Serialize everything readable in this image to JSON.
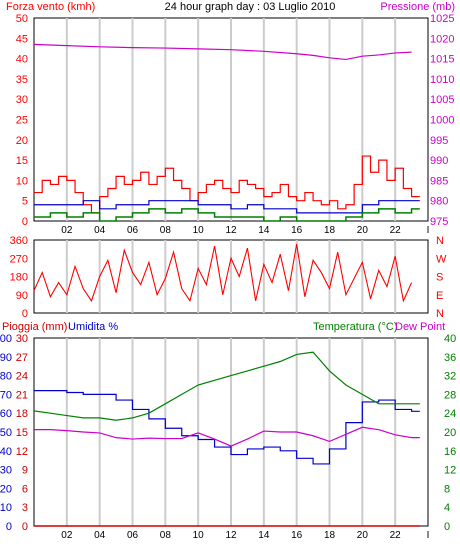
{
  "header": {
    "title": "24 hour graph day : 03 Luglio 2010",
    "wind_label": "Forza vento (kmh)",
    "pressure_label": "Pressione (mb)",
    "rain_label": "Pioggia (mm)",
    "humidity_label": "Umidita %",
    "temperature_label": "Temperatura (°C)",
    "dewpoint_label": "Dew Point"
  },
  "colors": {
    "wind_speed": "#ff0000",
    "wind_gust_low": "#008000",
    "wind_avg": "#0000cc",
    "pressure": "#cc00cc",
    "direction": "#ff0000",
    "humidity": "#0000cc",
    "temperature": "#008000",
    "dewpoint": "#cc00cc",
    "rain": "#cc0000",
    "grid": "#cccccc"
  },
  "chart_data": [
    {
      "type": "line",
      "name": "wind-pressure",
      "x_ticks": [
        "02",
        "04",
        "06",
        "08",
        "10",
        "12",
        "14",
        "16",
        "18",
        "20",
        "22",
        "I"
      ],
      "x_range": [
        0,
        24
      ],
      "y_left": {
        "label": "Forza vento (kmh)",
        "ticks": [
          0,
          5,
          10,
          15,
          20,
          25,
          30,
          35,
          40,
          45,
          50
        ],
        "range": [
          0,
          50
        ]
      },
      "y_right": {
        "label": "Pressione (mb)",
        "ticks": [
          975,
          980,
          985,
          990,
          995,
          1000,
          1005,
          1010,
          1015,
          1020,
          1025
        ],
        "range": [
          975,
          1025
        ]
      },
      "series": [
        {
          "name": "wind-gust",
          "axis": "left",
          "x": [
            0,
            0.5,
            1,
            1.5,
            2,
            2.5,
            3,
            3.5,
            4,
            4.5,
            5,
            5.5,
            6,
            6.5,
            7,
            7.5,
            8,
            8.5,
            9,
            9.5,
            10,
            10.5,
            11,
            11.5,
            12,
            12.5,
            13,
            13.5,
            14,
            14.5,
            15,
            15.5,
            16,
            16.5,
            17,
            17.5,
            18,
            18.5,
            19,
            19.5,
            20,
            20.5,
            21,
            21.5,
            22,
            22.5,
            23
          ],
          "y": [
            7,
            10,
            9,
            11,
            10,
            7,
            4,
            2,
            6,
            8,
            11,
            9,
            10,
            12,
            9,
            11,
            13,
            10,
            8,
            5,
            7,
            9,
            10,
            8,
            7,
            10,
            9,
            8,
            6,
            7,
            9,
            6,
            5,
            7,
            5,
            4,
            5,
            3,
            4,
            9,
            16,
            12,
            15,
            10,
            13,
            8,
            6
          ]
        },
        {
          "name": "wind-avg",
          "axis": "left",
          "x": [
            0,
            1,
            2,
            3,
            4,
            5,
            6,
            7,
            8,
            9,
            10,
            11,
            12,
            13,
            14,
            15,
            16,
            17,
            18,
            19,
            20,
            21,
            22,
            23
          ],
          "y": [
            4,
            4,
            4,
            5,
            3,
            4,
            4,
            5,
            5,
            5,
            4,
            4,
            3,
            4,
            3,
            3,
            2,
            2,
            2,
            2,
            4,
            5,
            5,
            5
          ]
        },
        {
          "name": "wind-min",
          "axis": "left",
          "x": [
            0,
            1,
            2,
            3,
            4,
            5,
            6,
            7,
            8,
            9,
            10,
            11,
            12,
            13,
            14,
            15,
            16,
            17,
            18,
            19,
            20,
            21,
            22,
            23
          ],
          "y": [
            1,
            2,
            1,
            2,
            0,
            1,
            2,
            3,
            2,
            3,
            2,
            1,
            1,
            1,
            0,
            1,
            0,
            0,
            0,
            1,
            2,
            3,
            2,
            3
          ]
        },
        {
          "name": "pressure",
          "axis": "right",
          "x": [
            0,
            2,
            4,
            6,
            8,
            10,
            12,
            14,
            16,
            17,
            18,
            19,
            20,
            21,
            22,
            23
          ],
          "y": [
            1018.5,
            1018.2,
            1017.9,
            1017.7,
            1017.6,
            1017.4,
            1017.2,
            1016.8,
            1016.2,
            1015.8,
            1015.2,
            1014.8,
            1015.6,
            1015.9,
            1016.4,
            1016.6
          ]
        }
      ]
    },
    {
      "type": "line",
      "name": "wind-direction",
      "x_range": [
        0,
        24
      ],
      "y_left": {
        "ticks": [
          0,
          90,
          180,
          270,
          360
        ],
        "range": [
          0,
          360
        ]
      },
      "y_right_labels": [
        "N",
        "W",
        "S",
        "E",
        "N"
      ],
      "series": [
        {
          "name": "direction",
          "x": [
            0,
            0.5,
            1,
            1.5,
            2,
            2.5,
            3,
            3.5,
            4,
            4.5,
            5,
            5.5,
            6,
            6.5,
            7,
            7.5,
            8,
            8.5,
            9,
            9.5,
            10,
            10.5,
            11,
            11.5,
            12,
            12.5,
            13,
            13.5,
            14,
            14.5,
            15,
            15.5,
            16,
            16.5,
            17,
            17.5,
            18,
            18.5,
            19,
            19.5,
            20,
            20.5,
            21,
            21.5,
            22,
            22.5,
            23
          ],
          "y": [
            110,
            200,
            80,
            150,
            90,
            230,
            120,
            60,
            180,
            260,
            100,
            310,
            200,
            140,
            250,
            90,
            170,
            300,
            120,
            60,
            220,
            140,
            330,
            90,
            270,
            180,
            320,
            60,
            240,
            150,
            290,
            110,
            340,
            80,
            260,
            200,
            120,
            300,
            90,
            170,
            250,
            70,
            210,
            130,
            280,
            60,
            150
          ]
        }
      ]
    },
    {
      "type": "line",
      "name": "temperature-humidity",
      "x_ticks": [
        "02",
        "04",
        "06",
        "08",
        "10",
        "12",
        "14",
        "16",
        "18",
        "20",
        "22",
        "I"
      ],
      "x_range": [
        0,
        24
      ],
      "y_left_humidity": {
        "label": "Umidita %",
        "ticks": [
          0,
          10,
          20,
          30,
          40,
          50,
          60,
          70,
          80,
          90,
          100
        ],
        "range": [
          0,
          100
        ]
      },
      "y_left_rain": {
        "label": "Pioggia (mm)",
        "ticks": [
          0,
          3,
          6,
          9,
          12,
          15,
          18,
          21,
          24,
          27,
          30
        ],
        "range": [
          0,
          30
        ]
      },
      "y_right": {
        "label": "Temperatura (°C)",
        "ticks": [
          0,
          4,
          8,
          12,
          16,
          20,
          24,
          28,
          32,
          36,
          40
        ],
        "range": [
          0,
          40
        ]
      },
      "series": [
        {
          "name": "humidity",
          "axis": "humidity",
          "x": [
            0,
            1,
            2,
            3,
            4,
            5,
            6,
            7,
            8,
            9,
            10,
            11,
            12,
            13,
            14,
            15,
            16,
            17,
            18,
            19,
            20,
            21,
            22,
            23
          ],
          "y": [
            72,
            72,
            71,
            70,
            70,
            67,
            62,
            57,
            52,
            48,
            46,
            42,
            38,
            41,
            42,
            40,
            36,
            33,
            41,
            55,
            66,
            67,
            62,
            61
          ]
        },
        {
          "name": "temperature",
          "axis": "right",
          "x": [
            0,
            1,
            2,
            3,
            4,
            5,
            6,
            7,
            8,
            9,
            10,
            11,
            12,
            13,
            14,
            15,
            16,
            17,
            18,
            19,
            20,
            21,
            22,
            23
          ],
          "y": [
            24.5,
            24,
            23.5,
            23,
            23,
            22.5,
            23,
            24,
            26,
            28,
            30,
            31,
            32,
            33,
            34,
            35,
            36.5,
            37,
            33,
            30,
            28,
            26,
            26,
            26
          ]
        },
        {
          "name": "dew-point",
          "axis": "right",
          "x": [
            0,
            1,
            2,
            3,
            4,
            5,
            6,
            7,
            8,
            9,
            10,
            11,
            12,
            13,
            14,
            15,
            16,
            17,
            18,
            19,
            20,
            21,
            22,
            23
          ],
          "y": [
            20.5,
            20.5,
            20.3,
            20,
            19.8,
            18.8,
            18.5,
            18.7,
            18.6,
            18.6,
            19.8,
            18.5,
            17,
            18.5,
            20.2,
            20,
            20,
            19.2,
            18,
            19.5,
            21,
            20.5,
            19.4,
            18.8
          ]
        },
        {
          "name": "rain",
          "axis": "rain",
          "x": [
            0,
            23.5
          ],
          "y": [
            0,
            0
          ]
        }
      ]
    }
  ]
}
